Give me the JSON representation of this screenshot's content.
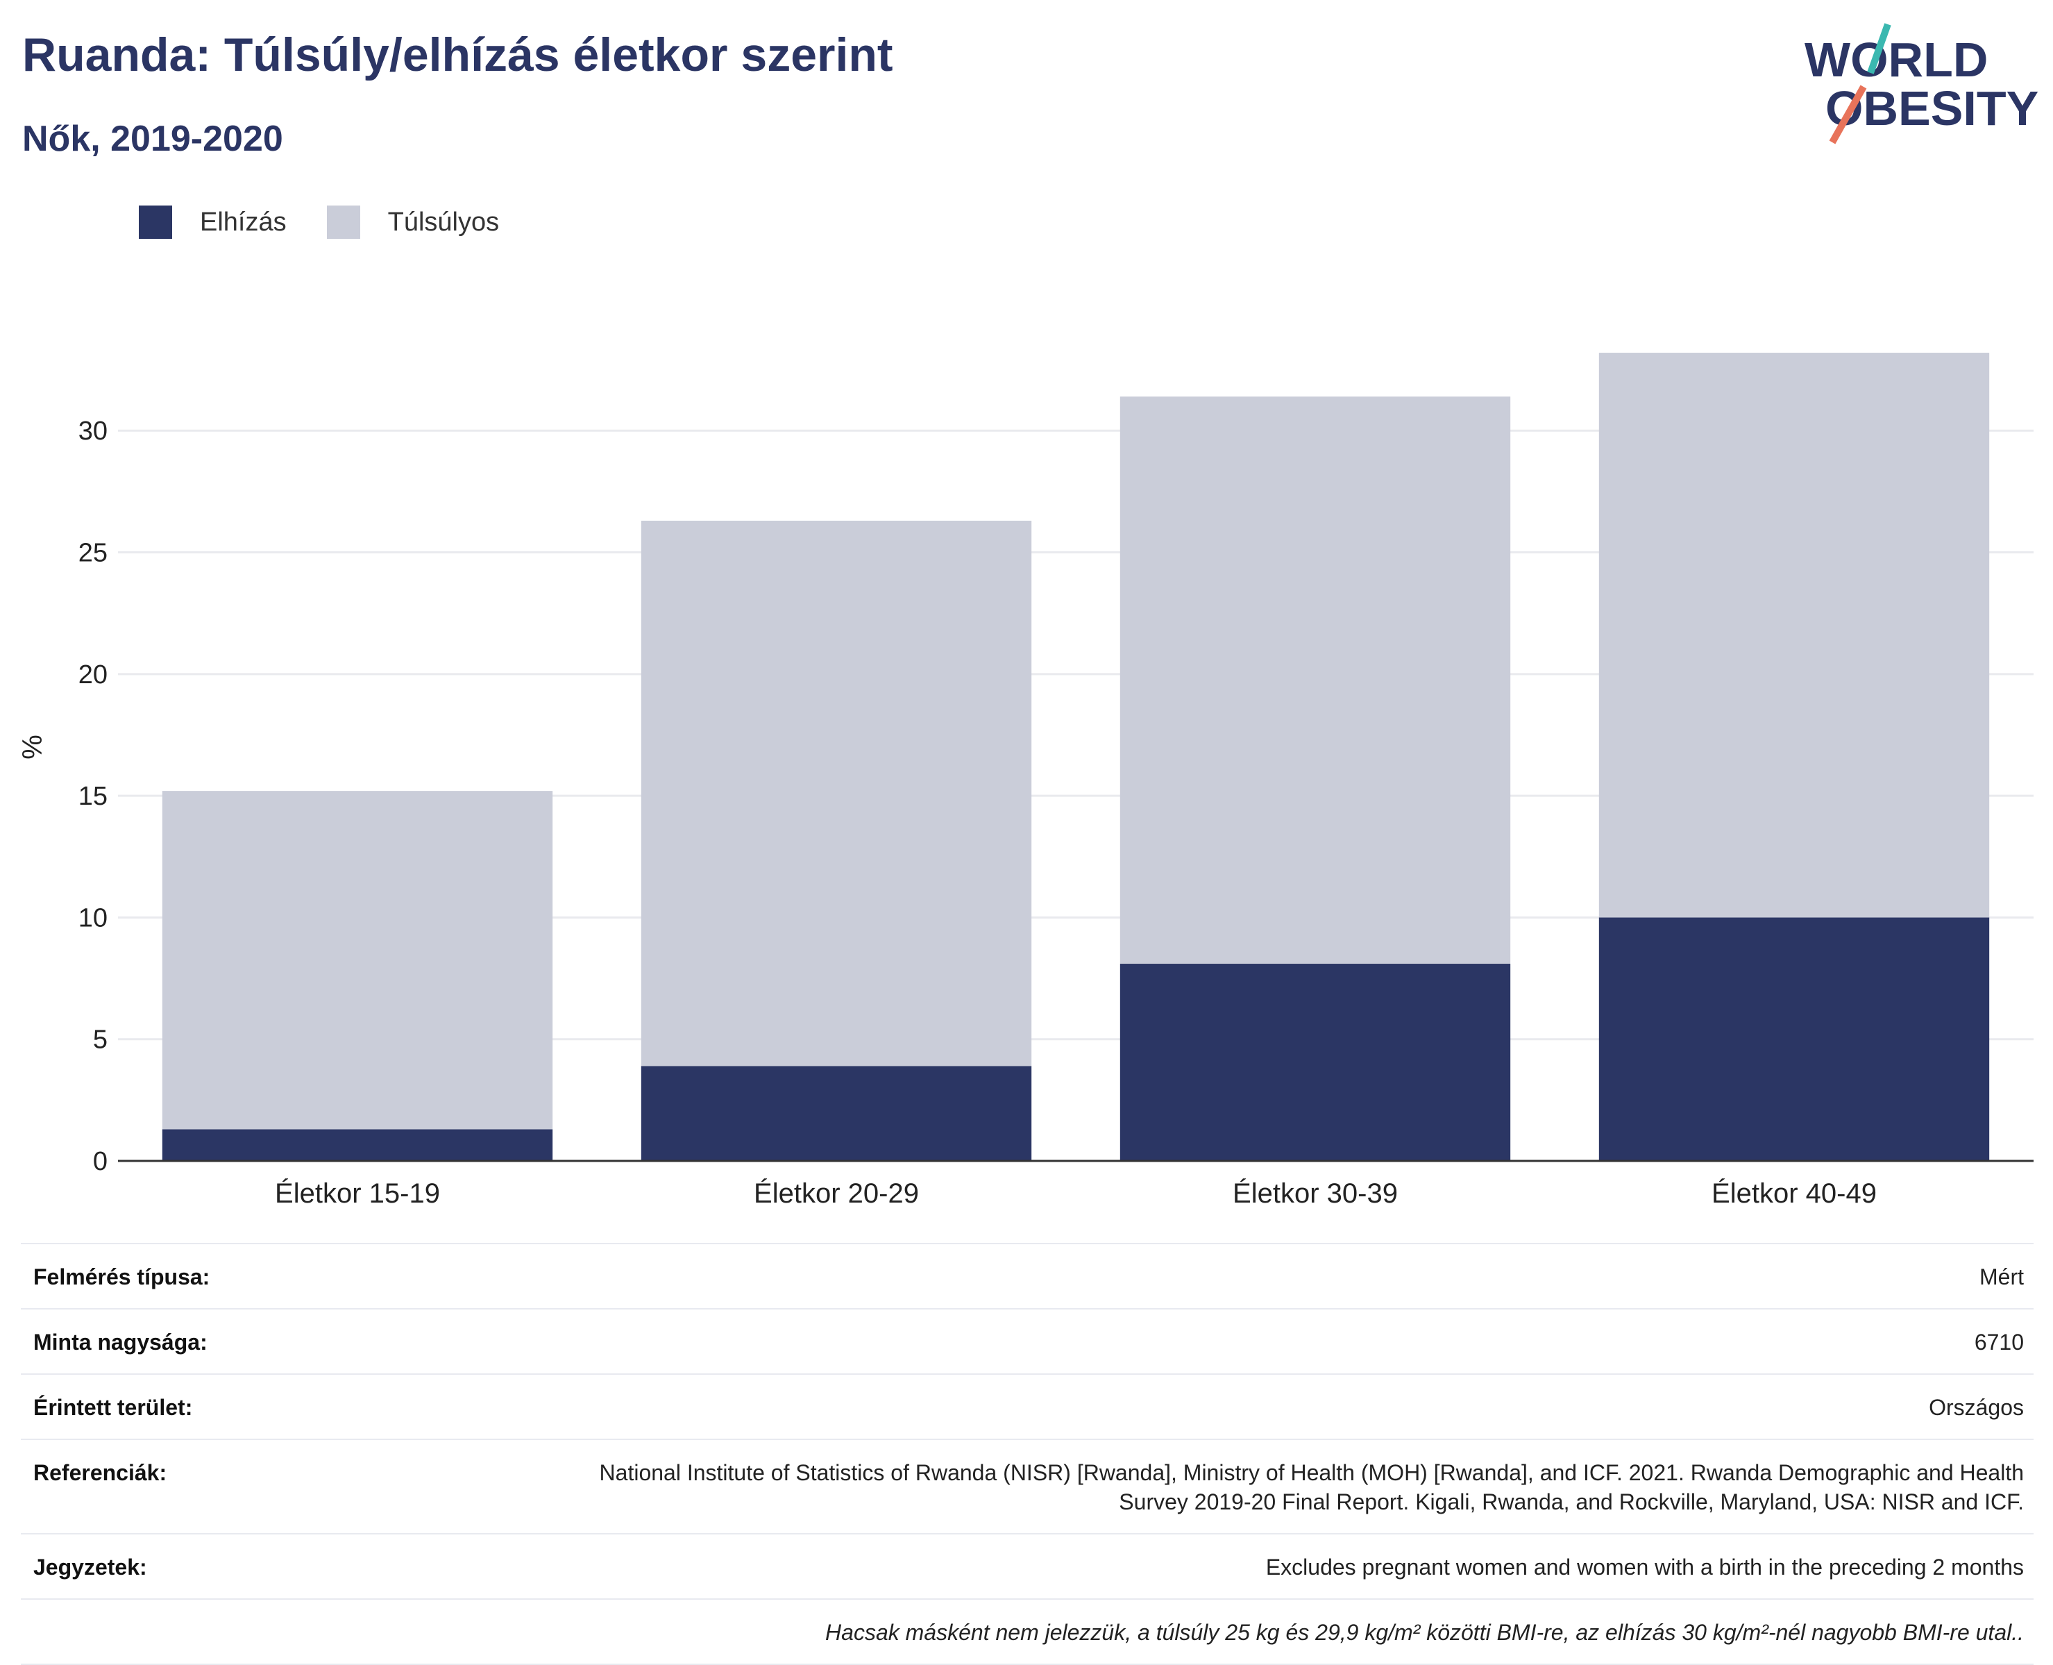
{
  "header": {
    "title": "Ruanda: Túlsúly/elhízás életkor szerint",
    "subtitle": "Nők, 2019-2020"
  },
  "logo": {
    "line1": "WORLD",
    "line2": "OBESITY"
  },
  "colors": {
    "obesity": "#2b3664",
    "overweight": "#cacdd9",
    "title": "#2b3564"
  },
  "chart_data": {
    "type": "bar",
    "stacked": true,
    "categories": [
      "Életkor 15-19",
      "Életkor 20-29",
      "Életkor 30-39",
      "Életkor 40-49"
    ],
    "series": [
      {
        "name": "Elhízás",
        "values": [
          1.3,
          3.9,
          8.1,
          10.0
        ]
      },
      {
        "name": "Túlsúlyos",
        "values": [
          13.9,
          22.4,
          23.3,
          23.2
        ]
      }
    ],
    "ylabel": "%",
    "ylim": [
      0,
      34
    ],
    "yticks": [
      0,
      5,
      10,
      15,
      20,
      25,
      30
    ],
    "grid": true,
    "legend_position": "top-left"
  },
  "info": {
    "rows": [
      {
        "label": "Felmérés típusa:",
        "value": "Mért"
      },
      {
        "label": "Minta nagysága:",
        "value": "6710"
      },
      {
        "label": "Érintett terület:",
        "value": "Országos"
      },
      {
        "label": "Referenciák:",
        "value": "National Institute of Statistics of Rwanda (NISR) [Rwanda], Ministry of Health (MOH) [Rwanda], and ICF. 2021. Rwanda Demographic and Health Survey 2019-20 Final Report. Kigali, Rwanda, and Rockville, Maryland, USA: NISR and ICF."
      },
      {
        "label": "Jegyzetek:",
        "value": "Excludes pregnant women and women with a birth in the preceding 2 months"
      }
    ],
    "note": "Hacsak másként nem jelezzük, a túlsúly 25 kg és 29,9 kg/m² közötti BMI-re, az elhízás 30 kg/m²-nél nagyobb BMI-re utal.."
  }
}
